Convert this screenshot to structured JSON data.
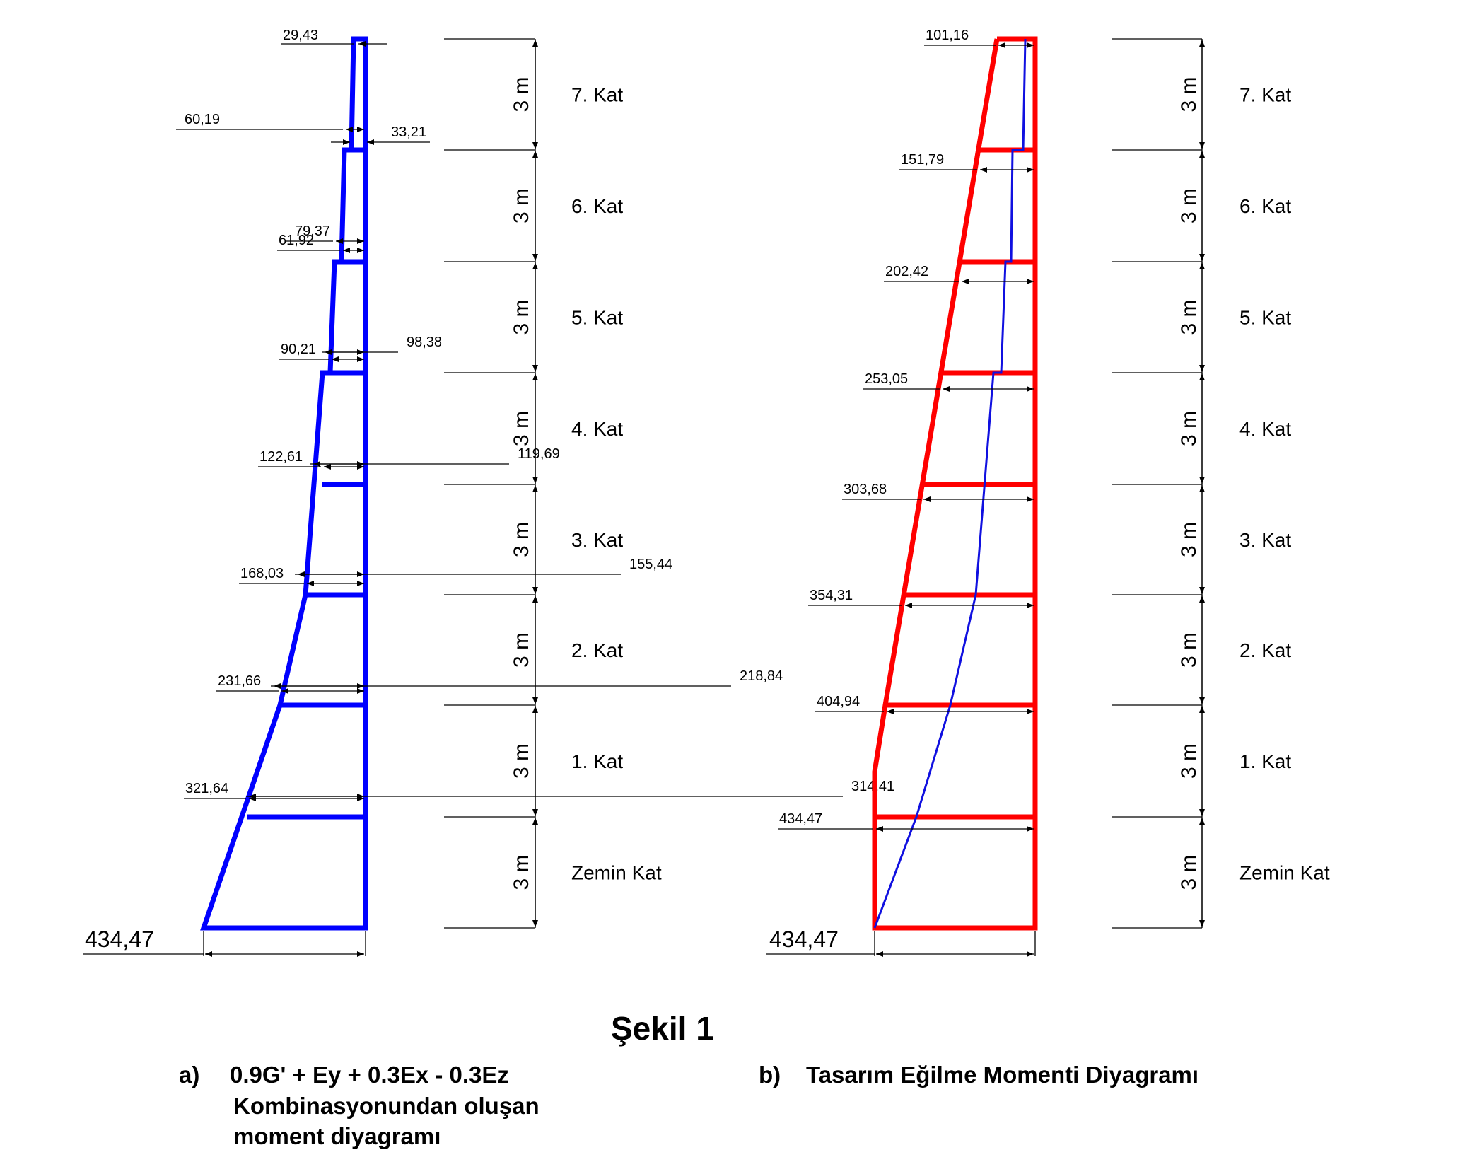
{
  "figure_title": "Şekil 1",
  "panel_a": {
    "caption_label": "a)",
    "caption_lines": [
      "0.9G' + Ey + 0.3Ex - 0.3Ez",
      "Kombinasyonundan oluşan",
      "moment diyagramı"
    ],
    "top_value": "29,43",
    "outer_values": [
      "60,19",
      "79,37",
      "98,38",
      "119,69",
      "155,44",
      "218,84",
      "314,41"
    ],
    "inner_values": [
      "61,92",
      "90,21",
      "122,61",
      "168,03",
      "231,66",
      "321,64"
    ],
    "right_value": "33,21",
    "base_value": "434,47"
  },
  "panel_b": {
    "caption_label": "b)",
    "caption": "Tasarım Eğilme Momenti Diyagramı",
    "level_values": [
      "101,16",
      "151,79",
      "202,42",
      "253,05",
      "303,68",
      "354,31",
      "404,94",
      "434,47"
    ],
    "base_value": "434,47"
  },
  "storeys": [
    "7. Kat",
    "6. Kat",
    "5. Kat",
    "4. Kat",
    "3. Kat",
    "2. Kat",
    "1. Kat",
    "Zemin Kat"
  ],
  "storey_height": "3 m",
  "colors": {
    "panel_a": "#0000ff",
    "panel_b": "#ff0000",
    "panel_b_inner": "#1010e0"
  }
}
